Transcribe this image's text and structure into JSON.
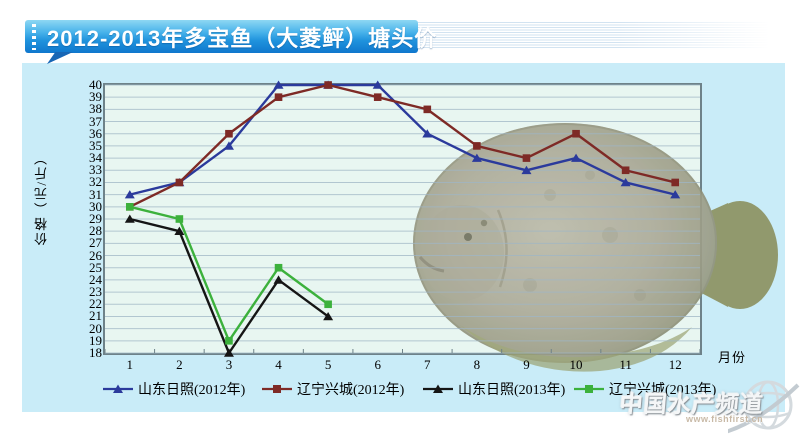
{
  "banner": {
    "title": "2012-2013年多宝鱼（大菱鲆）塘头价"
  },
  "chart_data": {
    "type": "line",
    "title": "2012-2013年多宝鱼（大菱鲆）塘头价",
    "xlabel": "月份",
    "ylabel": "价格（元/斤）",
    "categories": [
      "1",
      "2",
      "3",
      "4",
      "5",
      "6",
      "7",
      "8",
      "9",
      "10",
      "11",
      "12"
    ],
    "ylim": [
      18,
      40
    ],
    "ytick_step": 1,
    "grid": true,
    "legend_position": "bottom",
    "series": [
      {
        "name": "山东日照(2012年)",
        "color": "#2b3a9c",
        "marker": "triangle",
        "values": [
          31,
          32,
          35,
          40,
          40,
          40,
          36,
          34,
          33,
          34,
          32,
          31
        ]
      },
      {
        "name": "辽宁兴城(2012年)",
        "color": "#7e2a26",
        "marker": "square",
        "values": [
          30,
          32,
          36,
          39,
          40,
          39,
          38,
          35,
          34,
          36,
          33,
          32
        ]
      },
      {
        "name": "山东日照(2013年)",
        "color": "#151515",
        "marker": "triangle",
        "values": [
          29,
          28,
          18,
          24,
          21
        ]
      },
      {
        "name": "辽宁兴城(2013年)",
        "color": "#3cb13c",
        "marker": "square",
        "values": [
          30,
          29,
          19,
          25,
          22
        ]
      }
    ]
  },
  "watermark": {
    "brand": "中国水产频道",
    "url": "www.fishfirst.cn"
  },
  "colors": {
    "panel": "#c9ecf8",
    "plot_bg": "#e8f6f1",
    "gridline": "#9fb6c6",
    "plot_border": "#6e8289",
    "banner_top": "#8ed7f3",
    "banner_bottom": "#0f77cd",
    "stripe": "#d2e3f1",
    "banner_tail": "#1766b5"
  }
}
